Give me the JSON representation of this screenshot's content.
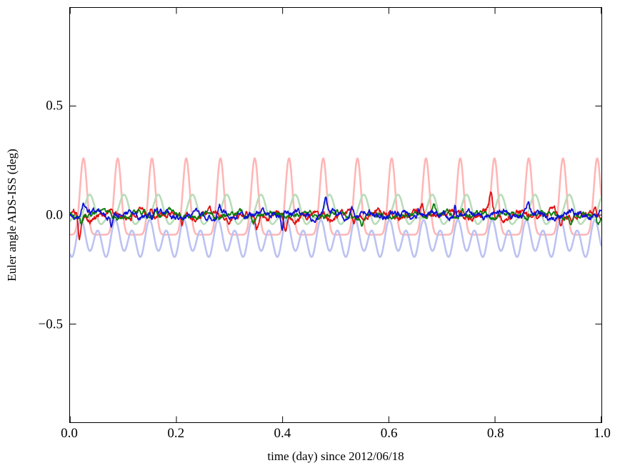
{
  "figure": {
    "background": "#ffffff",
    "border_color": "#000000"
  },
  "chart_data": {
    "type": "line",
    "title": "",
    "xlabel": "time (day) since 2012/06/18",
    "ylabel": "Euler angle ADS-ISS (deg)",
    "xlim": [
      0.0,
      1.0
    ],
    "ylim": [
      -0.95,
      0.95
    ],
    "grid": false,
    "legend": "none",
    "orbital_period_day": 0.0645,
    "xticks": [
      {
        "value": 0.0,
        "label": "0.0"
      },
      {
        "value": 0.2,
        "label": "0.2"
      },
      {
        "value": 0.4,
        "label": "0.4"
      },
      {
        "value": 0.6,
        "label": "0.6"
      },
      {
        "value": 0.8,
        "label": "0.8"
      },
      {
        "value": 1.0,
        "label": "1.0"
      }
    ],
    "yticks": [
      {
        "value": 0.5,
        "label": "0.5"
      },
      {
        "value": 0.0,
        "label": "0.0"
      },
      {
        "value": -0.5,
        "label": "−0.5"
      }
    ],
    "series": [
      {
        "name": "pale-red-raw",
        "color": "#ffb6b6",
        "width": 2.6,
        "description": "faded periodic trace: sharp peak to ~+0.26 once per orbit, flat baseline near -0.09",
        "model": {
          "kind": "spiky",
          "samples": 1600,
          "base": -0.09,
          "amp": 0.35,
          "sharpness": 5,
          "phase": 0.025
        }
      },
      {
        "name": "pale-green-raw",
        "color": "#b9dcb9",
        "width": 2.6,
        "description": "faded periodic trace oscillating between ~-0.07 and ~+0.09 once per orbit",
        "model": {
          "kind": "harmonic",
          "samples": 1600,
          "offset": 0.012,
          "components": [
            {
              "mult": 1,
              "amp": 0.055,
              "phase": -1.84
            },
            {
              "mult": 2,
              "amp": 0.028,
              "phase": 0.5
            }
          ]
        }
      },
      {
        "name": "pale-blue-raw",
        "color": "#bcc2f2",
        "width": 2.6,
        "description": "faded periodic trace staying below zero, between ~-0.02 and ~-0.21, two dips per orbit",
        "model": {
          "kind": "harmonic",
          "samples": 1600,
          "offset": -0.112,
          "components": [
            {
              "mult": 2,
              "amp": 0.065,
              "phase": -2.33
            },
            {
              "mult": 1,
              "amp": 0.028,
              "phase": -0.9
            }
          ]
        }
      },
      {
        "name": "red-filtered",
        "color": "#e01010",
        "width": 1.8,
        "description": "noisy trace around 0 (±0.04) with occasional downward spikes to ~-0.13",
        "model": {
          "kind": "noisy",
          "samples": 1100,
          "seed": 101,
          "smooth": 0.18,
          "jitter": 0.06,
          "periodic": 0.012,
          "phase": 0.8,
          "spike_prob": 0.75,
          "spike_min": 0.03,
          "spike_max": 0.11,
          "neg_bias": 0.6,
          "spike_offset": 0.025
        }
      },
      {
        "name": "green-filtered",
        "color": "#0a7d0a",
        "width": 1.8,
        "description": "noisy trace around 0 (±0.03) with occasional spikes to ~-0.07",
        "model": {
          "kind": "noisy",
          "samples": 1100,
          "seed": 202,
          "smooth": 0.16,
          "jitter": 0.05,
          "periodic": 0.01,
          "phase": 2.2,
          "spike_prob": 0.5,
          "spike_min": 0.02,
          "spike_max": 0.06,
          "neg_bias": 0.55,
          "spike_offset": 0.03
        }
      },
      {
        "name": "blue-filtered",
        "color": "#1111d6",
        "width": 1.8,
        "description": "noisy trace around 0 (±0.04) with occasional upward spikes to ~+0.10",
        "model": {
          "kind": "noisy",
          "samples": 1100,
          "seed": 303,
          "smooth": 0.17,
          "jitter": 0.055,
          "periodic": 0.012,
          "phase": 4.0,
          "spike_prob": 0.65,
          "spike_min": 0.03,
          "spike_max": 0.09,
          "neg_bias": 0.3,
          "spike_offset": 0.02
        }
      }
    ]
  }
}
